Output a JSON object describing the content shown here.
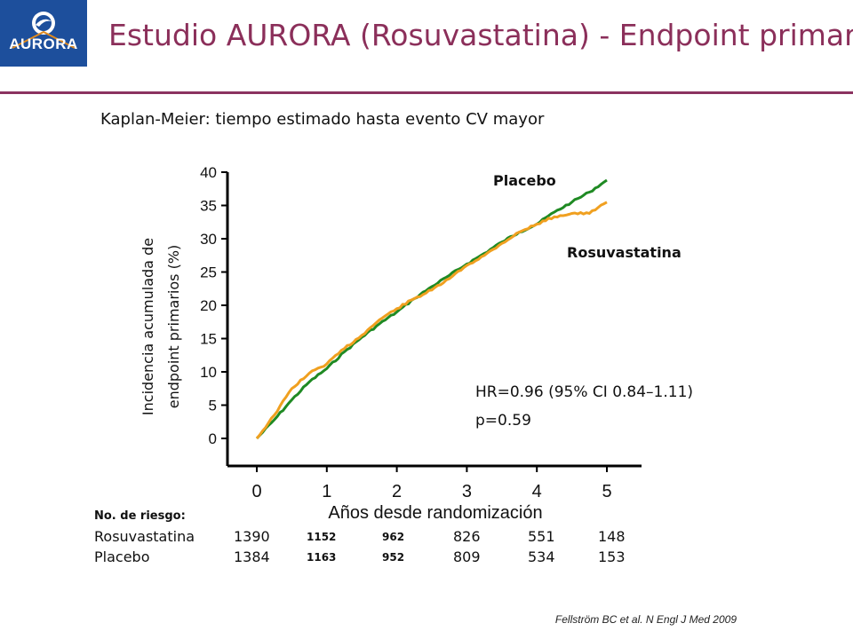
{
  "header": {
    "logo_text": "AURORA",
    "title": "Estudio AURORA (Rosuvastatina) - Endpoint primario",
    "subtitle": "Kaplan-Meier: tiempo estimado hasta evento CV mayor"
  },
  "colors": {
    "title": "#8b2f5a",
    "placebo": "#1f8a23",
    "rosuvastatina": "#f0a020",
    "logo_bg": "#1d4f9c"
  },
  "chart_data": {
    "type": "line",
    "title": "Kaplan-Meier: tiempo estimado hasta evento CV mayor",
    "xlabel": "Años desde randomización",
    "ylabel_line1": "Incidencia acumulada de",
    "ylabel_line2": "endpoint primarios (%)",
    "xlim": [
      0,
      5
    ],
    "ylim": [
      0,
      40
    ],
    "xticks": [
      "0",
      "1",
      "2",
      "3",
      "4",
      "5"
    ],
    "yticks": [
      "0",
      "5",
      "10",
      "15",
      "20",
      "25",
      "30",
      "35",
      "40"
    ],
    "series": [
      {
        "name": "Placebo",
        "x": [
          0,
          0.25,
          0.5,
          0.75,
          1.0,
          1.25,
          1.5,
          1.75,
          2.0,
          2.25,
          2.5,
          2.75,
          3.0,
          3.25,
          3.5,
          3.75,
          4.0,
          4.25,
          4.5,
          4.75,
          5.0
        ],
        "y": [
          0,
          2.8,
          5.8,
          8.5,
          10.5,
          13.0,
          15.2,
          17.2,
          19.0,
          21.0,
          22.8,
          24.5,
          26.2,
          27.8,
          29.5,
          31.0,
          32.2,
          34.0,
          35.5,
          37.0,
          38.8
        ]
      },
      {
        "name": "Rosuvastatina",
        "x": [
          0,
          0.25,
          0.5,
          0.75,
          1.0,
          1.25,
          1.5,
          1.75,
          2.0,
          2.25,
          2.5,
          2.75,
          3.0,
          3.25,
          3.5,
          3.75,
          4.0,
          4.25,
          4.5,
          4.75,
          5.0
        ],
        "y": [
          0,
          3.5,
          7.5,
          9.8,
          11.2,
          13.5,
          15.5,
          17.8,
          19.5,
          21.0,
          22.3,
          24.0,
          26.0,
          27.5,
          29.3,
          31.0,
          32.2,
          33.3,
          33.8,
          33.8,
          35.5
        ]
      }
    ],
    "annotations": {
      "label_placebo": "Placebo",
      "label_rosuvastatina": "Rosuvastatina",
      "hr": "HR=0.96 (95% CI 0.84–1.11)",
      "p": "p=0.59"
    }
  },
  "risk_table": {
    "header": "No. de riesgo:",
    "rows": [
      {
        "label": "Rosuvastatina",
        "values": [
          "1390",
          "1152",
          "962",
          "826",
          "551",
          "148"
        ]
      },
      {
        "label": "Placebo",
        "values": [
          "1384",
          "1163",
          "952",
          "809",
          "534",
          "153"
        ]
      }
    ]
  },
  "citation": "Fellström BC et al. N Engl J Med 2009"
}
